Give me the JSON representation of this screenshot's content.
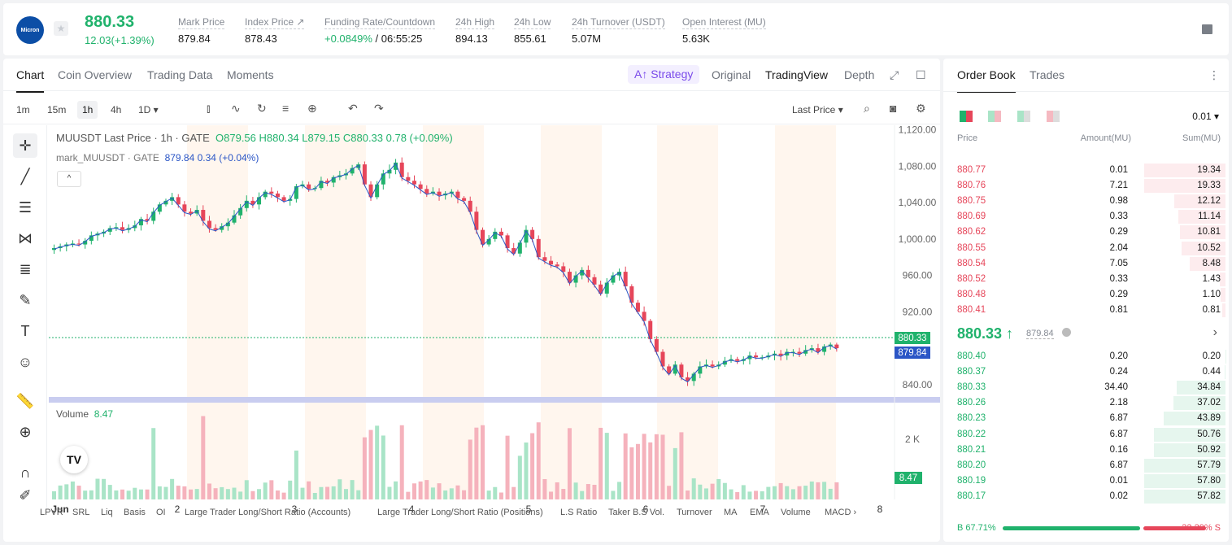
{
  "header": {
    "logo_text": "Micron",
    "last_price": "880.33",
    "change": "12.03(+1.39%)",
    "stats": [
      {
        "label": "Mark Price",
        "value": "879.84"
      },
      {
        "label": "Index Price ↗",
        "value": "878.43"
      },
      {
        "label": "Funding Rate/Countdown",
        "value_green": "+0.0849%",
        "value": " / 06:55:25"
      },
      {
        "label": "24h High",
        "value": "894.13"
      },
      {
        "label": "24h Low",
        "value": "855.61"
      },
      {
        "label": "24h Turnover (USDT)",
        "value": "5.07M"
      },
      {
        "label": "Open Interest (MU)",
        "value": "5.63K"
      }
    ]
  },
  "chart_tabs": [
    "Chart",
    "Coin Overview",
    "Trading Data",
    "Moments"
  ],
  "view_tabs": {
    "strategy": "A↑ Strategy",
    "items": [
      "Original",
      "TradingView",
      "Depth"
    ]
  },
  "timeframes": [
    "1m",
    "15m",
    "1h",
    "4h",
    "1D ▾"
  ],
  "price_source": "Last Price ▾",
  "legend": {
    "main": "MUUSDT Last Price · 1h · GATE",
    "ohlc": "O879.56 H880.34 L879.15 C880.33 0.78 (+0.09%)",
    "mark_name": "mark_MUUSDT · GATE",
    "mark_val": "879.84 0.34 (+0.04%)"
  },
  "volume_legend": {
    "label": "Volume",
    "value": "8.47"
  },
  "price_axis": [
    "1,120.00",
    "1,080.00",
    "1,040.00",
    "1,000.00",
    "960.00",
    "920.00",
    "880.33",
    "879.84",
    "840.00"
  ],
  "volume_axis": [
    "2 K",
    "8.47"
  ],
  "date_axis": [
    "Jun",
    "2",
    "3",
    "4",
    "5",
    "6",
    "7",
    "8"
  ],
  "indicators": [
    "LPVR",
    "SRL",
    "Liq",
    "Basis",
    "OI",
    "Large Trader Long/Short Ratio (Accounts)",
    "Large Trader Long/Short Ratio (Positions)",
    "L.S Ratio",
    "Taker B.S Vol.",
    "Turnover",
    "MA",
    "EMA",
    "Volume",
    "MACD ›"
  ],
  "orderbook": {
    "tabs": [
      "Order Book",
      "Trades"
    ],
    "precision": "0.01 ▾",
    "headers": [
      "Price",
      "Amount(MU)",
      "Sum(MU)"
    ],
    "asks": [
      [
        "880.77",
        "0.01",
        "19.34"
      ],
      [
        "880.76",
        "7.21",
        "19.33"
      ],
      [
        "880.75",
        "0.98",
        "12.12"
      ],
      [
        "880.69",
        "0.33",
        "11.14"
      ],
      [
        "880.62",
        "0.29",
        "10.81"
      ],
      [
        "880.55",
        "2.04",
        "10.52"
      ],
      [
        "880.54",
        "7.05",
        "8.48"
      ],
      [
        "880.52",
        "0.33",
        "1.43"
      ],
      [
        "880.48",
        "0.29",
        "1.10"
      ],
      [
        "880.41",
        "0.81",
        "0.81"
      ]
    ],
    "mid_price": "880.33 ↑",
    "mid_mark": "879.84",
    "bids": [
      [
        "880.40",
        "0.20",
        "0.20"
      ],
      [
        "880.37",
        "0.24",
        "0.44"
      ],
      [
        "880.33",
        "34.40",
        "34.84"
      ],
      [
        "880.26",
        "2.18",
        "37.02"
      ],
      [
        "880.23",
        "6.87",
        "43.89"
      ],
      [
        "880.22",
        "6.87",
        "50.76"
      ],
      [
        "880.21",
        "0.16",
        "50.92"
      ],
      [
        "880.20",
        "6.87",
        "57.79"
      ],
      [
        "880.19",
        "0.01",
        "57.80"
      ],
      [
        "880.17",
        "0.02",
        "57.82"
      ]
    ],
    "buy_ratio": "B 67.71%",
    "sell_ratio": "32.29% S",
    "buy_fraction": 0.6771
  },
  "colors": {
    "up": "#20b26c",
    "down": "#e6465a",
    "mark": "#2b56c6",
    "strategy": "#7a4bea"
  },
  "chart_data": {
    "type": "candlestick",
    "price_range": [
      830,
      1125
    ],
    "close_path": [
      990,
      992,
      994,
      995,
      994,
      998,
      1004,
      1006,
      1008,
      1012,
      1013,
      1010,
      1012,
      1015,
      1022,
      1020,
      1030,
      1038,
      1042,
      1046,
      1038,
      1030,
      1028,
      1032,
      1020,
      1012,
      1010,
      1014,
      1018,
      1026,
      1034,
      1042,
      1038,
      1046,
      1052,
      1050,
      1046,
      1042,
      1044,
      1058,
      1060,
      1055,
      1056,
      1064,
      1062,
      1068,
      1070,
      1072,
      1078,
      1082,
      1060,
      1046,
      1060,
      1072,
      1076,
      1084,
      1068,
      1064,
      1060,
      1055,
      1050,
      1052,
      1048,
      1050,
      1052,
      1045,
      1042,
      1030,
      1010,
      994,
      1000,
      1008,
      1004,
      990,
      984,
      996,
      1010,
      1000,
      980,
      976,
      972,
      970,
      964,
      952,
      960,
      966,
      958,
      950,
      940,
      952,
      960,
      964,
      948,
      930,
      920,
      910,
      890,
      876,
      860,
      852,
      862,
      848,
      844,
      852,
      860,
      862,
      860,
      862,
      866,
      868,
      866,
      868,
      872,
      870,
      870,
      872,
      874,
      872,
      876,
      876,
      874,
      878,
      880,
      876,
      882,
      884,
      880
    ]
  }
}
